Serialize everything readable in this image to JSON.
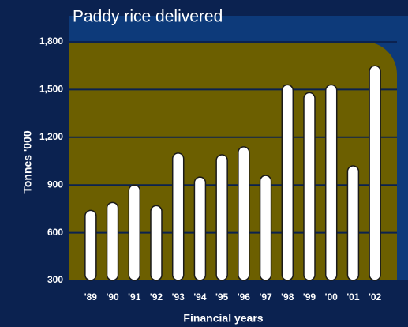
{
  "chart_data": {
    "type": "bar",
    "title": "Paddy rice delivered",
    "x_label": "Financial years",
    "y_label": "Tonnes '000",
    "categories": [
      "'89",
      "'90",
      "'91",
      "'92",
      "'93",
      "'94",
      "'95",
      "'96",
      "'97",
      "'98",
      "'99",
      "'00",
      "'01",
      "'02"
    ],
    "values": [
      740,
      790,
      900,
      770,
      1100,
      950,
      1090,
      1140,
      960,
      1530,
      1480,
      1530,
      1020,
      1650
    ],
    "color": "#ffffff",
    "ylim": [
      300,
      1800
    ],
    "yticks": [
      {
        "value": 300,
        "label": "300"
      },
      {
        "value": 600,
        "label": "600"
      },
      {
        "value": 900,
        "label": "900"
      },
      {
        "value": 1200,
        "label": "1,200"
      },
      {
        "value": 1500,
        "label": "1,500"
      },
      {
        "value": 1800,
        "label": "1,800"
      }
    ],
    "grid": true
  }
}
